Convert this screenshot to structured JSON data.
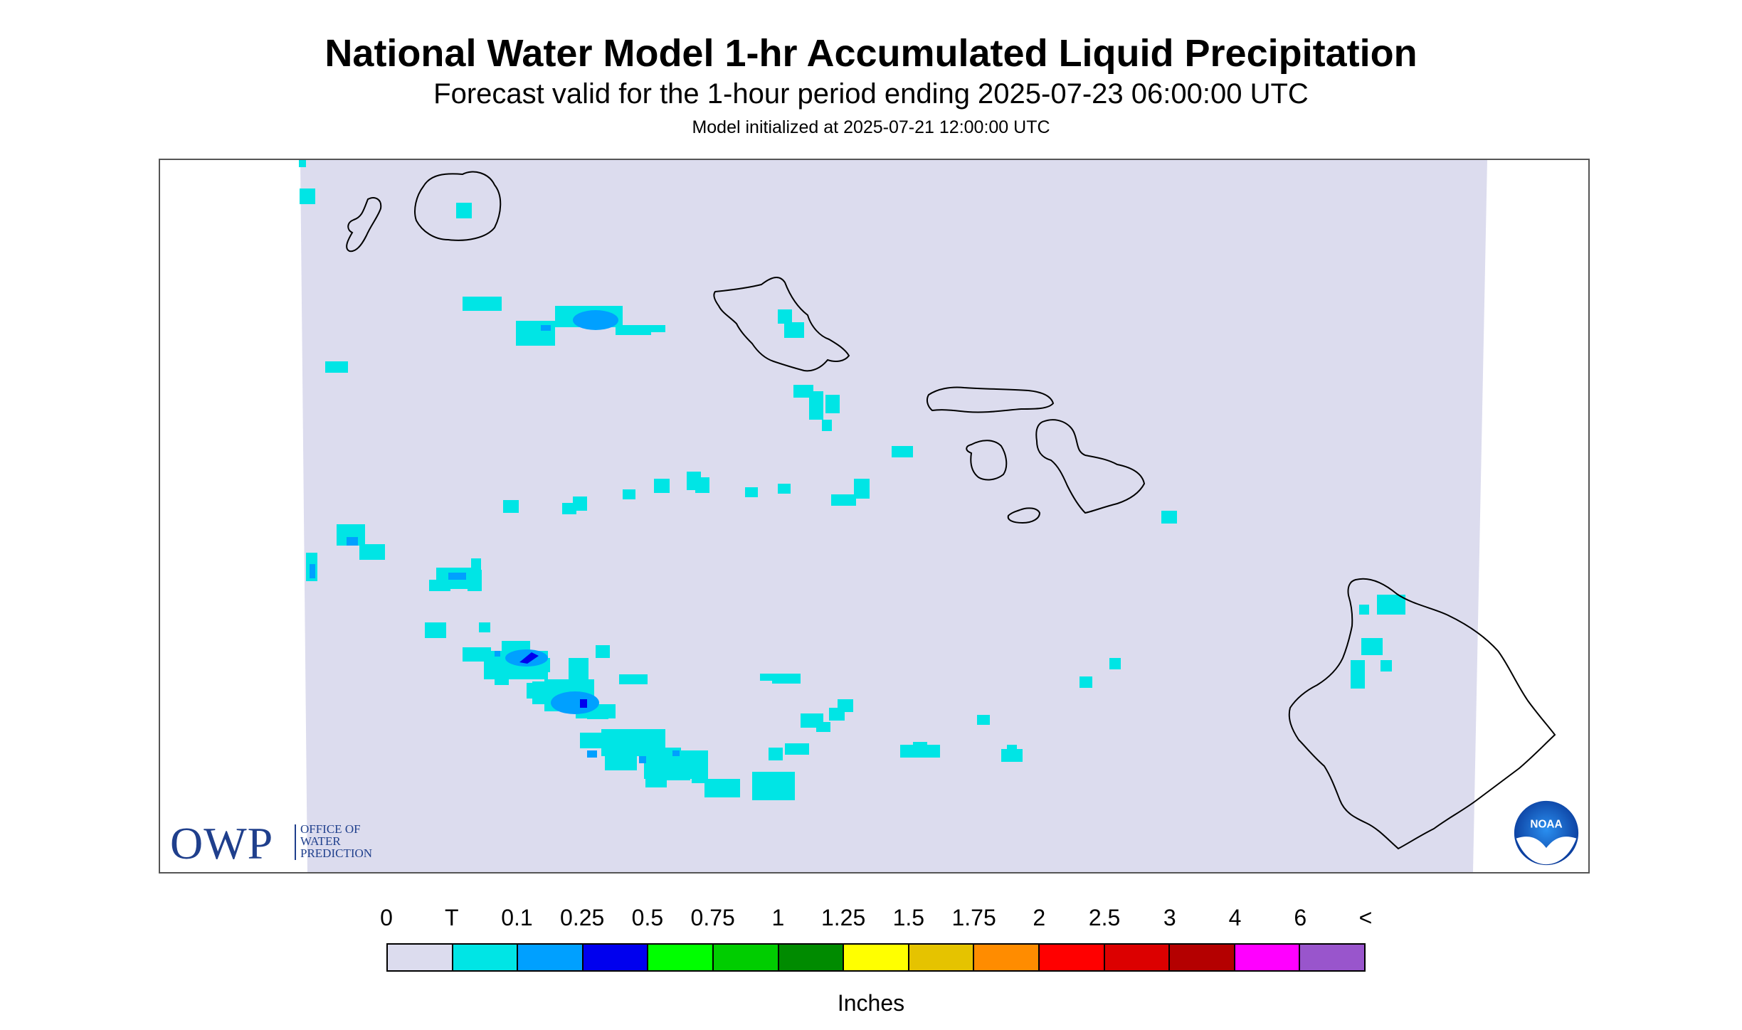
{
  "header": {
    "title": "National Water Model 1-hr Accumulated Liquid Precipitation",
    "subtitle": "Forecast valid for the 1-hour period ending 2025-07-23 06:00:00 UTC",
    "init_line": "Model initialized at 2025-07-21 12:00:00 UTC"
  },
  "map": {
    "background_color": "#dcdcee",
    "coastline_color": "#000000",
    "region": "Hawaiian Islands"
  },
  "logos": {
    "owp": {
      "abbrev": "OWP",
      "lines": [
        "OFFICE OF",
        "WATER",
        "PREDICTION"
      ],
      "color": "#1f3f8c"
    },
    "noaa": {
      "text": "NOAA",
      "icon": "noaa-seagull-icon"
    }
  },
  "legend": {
    "ticks": [
      "0",
      "T",
      "0.1",
      "0.25",
      "0.5",
      "0.75",
      "1",
      "1.25",
      "1.5",
      "1.75",
      "2",
      "2.5",
      "3",
      "4",
      "6",
      "<"
    ],
    "colors": [
      "#dcdcee",
      "#00e5e5",
      "#00a0ff",
      "#0000ee",
      "#00ff00",
      "#00cd00",
      "#008b00",
      "#ffff00",
      "#e5c300",
      "#ff8c00",
      "#ff0000",
      "#dc0000",
      "#b40000",
      "#ff00ff",
      "#9955cc"
    ],
    "units": "Inches"
  }
}
